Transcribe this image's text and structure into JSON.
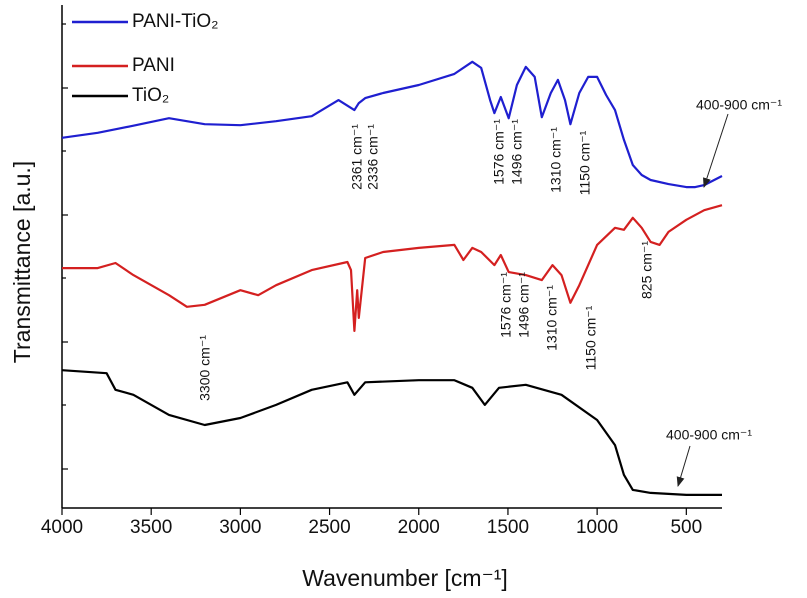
{
  "chart_data": {
    "type": "line",
    "x_label": "Wavenumber [cm⁻¹]",
    "y_label": "Transmittance [a.u.]",
    "xlim": [
      4000,
      300
    ],
    "ylim": [
      0,
      100
    ],
    "xticks": [
      4000,
      3500,
      3000,
      2500,
      2000,
      1500,
      1000,
      500
    ],
    "series": [
      {
        "name": "PANI-TiO₂",
        "color": "#1f1fd0",
        "x": [
          4000,
          3800,
          3600,
          3400,
          3200,
          3000,
          2800,
          2600,
          2450,
          2361,
          2336,
          2300,
          2200,
          2000,
          1800,
          1700,
          1650,
          1600,
          1576,
          1540,
          1496,
          1450,
          1400,
          1350,
          1310,
          1260,
          1220,
          1180,
          1150,
          1100,
          1050,
          1000,
          950,
          900,
          850,
          800,
          750,
          700,
          600,
          500,
          450,
          400,
          300
        ],
        "values": [
          73.6,
          74.6,
          76.0,
          77.5,
          76.3,
          76.1,
          76.9,
          77.9,
          81.1,
          79.1,
          80.5,
          81.5,
          82.5,
          84.1,
          86.3,
          88.7,
          87.5,
          81.1,
          78.5,
          81.7,
          77.5,
          84.1,
          87.7,
          85.7,
          77.7,
          82.5,
          85.1,
          81.1,
          76.3,
          82.5,
          85.7,
          85.7,
          82.1,
          79.1,
          73.2,
          68.2,
          66.2,
          65.2,
          64.4,
          63.8,
          63.8,
          64.2,
          66.0
        ]
      },
      {
        "name": "PANI",
        "color": "#d42020",
        "x": [
          4000,
          3800,
          3700,
          3600,
          3400,
          3300,
          3200,
          3000,
          2900,
          2800,
          2600,
          2400,
          2380,
          2361,
          2345,
          2336,
          2300,
          2200,
          2000,
          1800,
          1750,
          1700,
          1650,
          1576,
          1540,
          1496,
          1400,
          1310,
          1250,
          1200,
          1150,
          1100,
          1050,
          1000,
          900,
          850,
          800,
          750,
          700,
          650,
          600,
          500,
          400,
          300
        ],
        "values": [
          47.7,
          47.7,
          48.7,
          46.3,
          42.3,
          40.0,
          40.4,
          43.3,
          42.3,
          44.3,
          47.3,
          48.9,
          47.3,
          35.2,
          43.3,
          37.8,
          49.7,
          50.9,
          51.7,
          52.3,
          49.3,
          51.7,
          50.9,
          48.3,
          50.3,
          46.9,
          46.3,
          45.3,
          48.3,
          46.3,
          40.8,
          44.3,
          48.3,
          52.3,
          55.7,
          55.3,
          57.7,
          55.7,
          52.9,
          52.3,
          54.9,
          57.3,
          59.2,
          60.2
        ]
      },
      {
        "name": "TiO₂",
        "color": "#000000",
        "x": [
          4000,
          3750,
          3700,
          3600,
          3400,
          3200,
          3000,
          2800,
          2600,
          2400,
          2361,
          2300,
          2000,
          1800,
          1700,
          1630,
          1550,
          1400,
          1200,
          1000,
          900,
          850,
          800,
          700,
          500,
          300
        ],
        "values": [
          27.4,
          26.8,
          23.5,
          22.5,
          18.5,
          16.5,
          17.9,
          20.5,
          23.5,
          25.0,
          22.5,
          25.0,
          25.4,
          25.4,
          23.9,
          20.5,
          23.9,
          24.5,
          22.5,
          17.5,
          12.5,
          6.6,
          3.6,
          3.0,
          2.6,
          2.6
        ]
      }
    ],
    "annotations": [
      "2361 cm⁻¹",
      "2336 cm⁻¹",
      "1576 cm⁻¹",
      "1496 cm⁻¹",
      "1310 cm⁻¹",
      "1150 cm⁻¹",
      "400-900 cm⁻¹",
      "3300 cm⁻¹",
      "1576 cm⁻¹",
      "1496 cm⁻¹",
      "1310 cm⁻¹",
      "1150 cm⁻¹",
      "825 cm⁻¹",
      "400-900 cm⁻¹"
    ]
  }
}
